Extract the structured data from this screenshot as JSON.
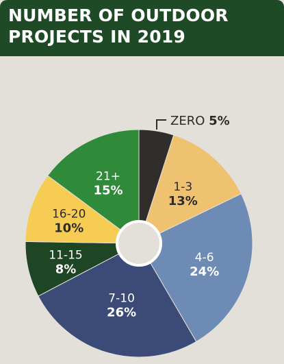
{
  "header": {
    "title_line1": "NUMBER OF OUTDOOR",
    "title_line2": "PROJECTS IN 2019"
  },
  "chart_data": {
    "type": "pie",
    "title": "NUMBER OF OUTDOOR PROJECTS IN 2019",
    "donut_hole": true,
    "slices": [
      {
        "label": "ZERO",
        "pct_text": "5%",
        "value": 5,
        "color": "#2f2e2a",
        "text_color": "#2b2b2b",
        "outside_label": true
      },
      {
        "label": "1-3",
        "pct_text": "13%",
        "value": 13,
        "color": "#eec271",
        "text_color": "#2b2b2b"
      },
      {
        "label": "4-6",
        "pct_text": "24%",
        "value": 24,
        "color": "#6d8bb4",
        "text_color": "#ffffff"
      },
      {
        "label": "7-10",
        "pct_text": "26%",
        "value": 26,
        "color": "#3b4a76",
        "text_color": "#ffffff"
      },
      {
        "label": "11-15",
        "pct_text": "8%",
        "value": 8,
        "color": "#1f4624",
        "text_color": "#ffffff"
      },
      {
        "label": "16-20",
        "pct_text": "10%",
        "value": 10,
        "color": "#f6cd52",
        "text_color": "#2b2b2b"
      },
      {
        "label": "21+",
        "pct_text": "15%",
        "value": 15,
        "color": "#2f8b3a",
        "text_color": "#ffffff"
      }
    ],
    "background_color": "#e3e0da",
    "header_color": "#1e4a26"
  }
}
